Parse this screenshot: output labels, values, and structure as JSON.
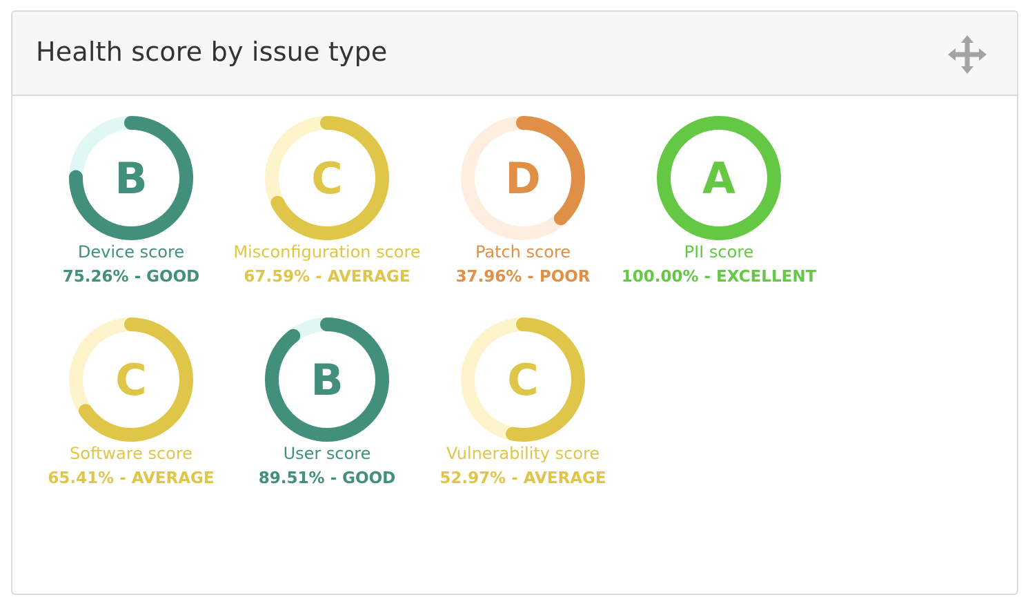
{
  "widget": {
    "title": "Health score by issue type",
    "move_icon": "move-arrows-icon"
  },
  "colors": {
    "good": "#428f7b",
    "good_track": "#e0f7f4",
    "average": "#dfc548",
    "average_track": "#fdf4cc",
    "poor": "#e08f47",
    "poor_track": "#fdeedf",
    "excellent": "#65c845",
    "excellent_track": "#e3f5dc"
  },
  "scores": [
    {
      "name": "Device score",
      "grade": "B",
      "percent": 75.26,
      "value_text": "75.26% - GOOD",
      "status": "good"
    },
    {
      "name": "Misconfiguration score",
      "grade": "C",
      "percent": 67.59,
      "value_text": "67.59% - AVERAGE",
      "status": "average"
    },
    {
      "name": "Patch score",
      "grade": "D",
      "percent": 37.96,
      "value_text": "37.96% - POOR",
      "status": "poor"
    },
    {
      "name": "PII score",
      "grade": "A",
      "percent": 100.0,
      "value_text": "100.00% - EXCELLENT",
      "status": "excellent"
    },
    {
      "name": "Software score",
      "grade": "C",
      "percent": 65.41,
      "value_text": "65.41% - AVERAGE",
      "status": "average"
    },
    {
      "name": "User score",
      "grade": "B",
      "percent": 89.51,
      "value_text": "89.51% - GOOD",
      "status": "good"
    },
    {
      "name": "Vulnerability score",
      "grade": "C",
      "percent": 52.97,
      "value_text": "52.97% - AVERAGE",
      "status": "average"
    }
  ]
}
